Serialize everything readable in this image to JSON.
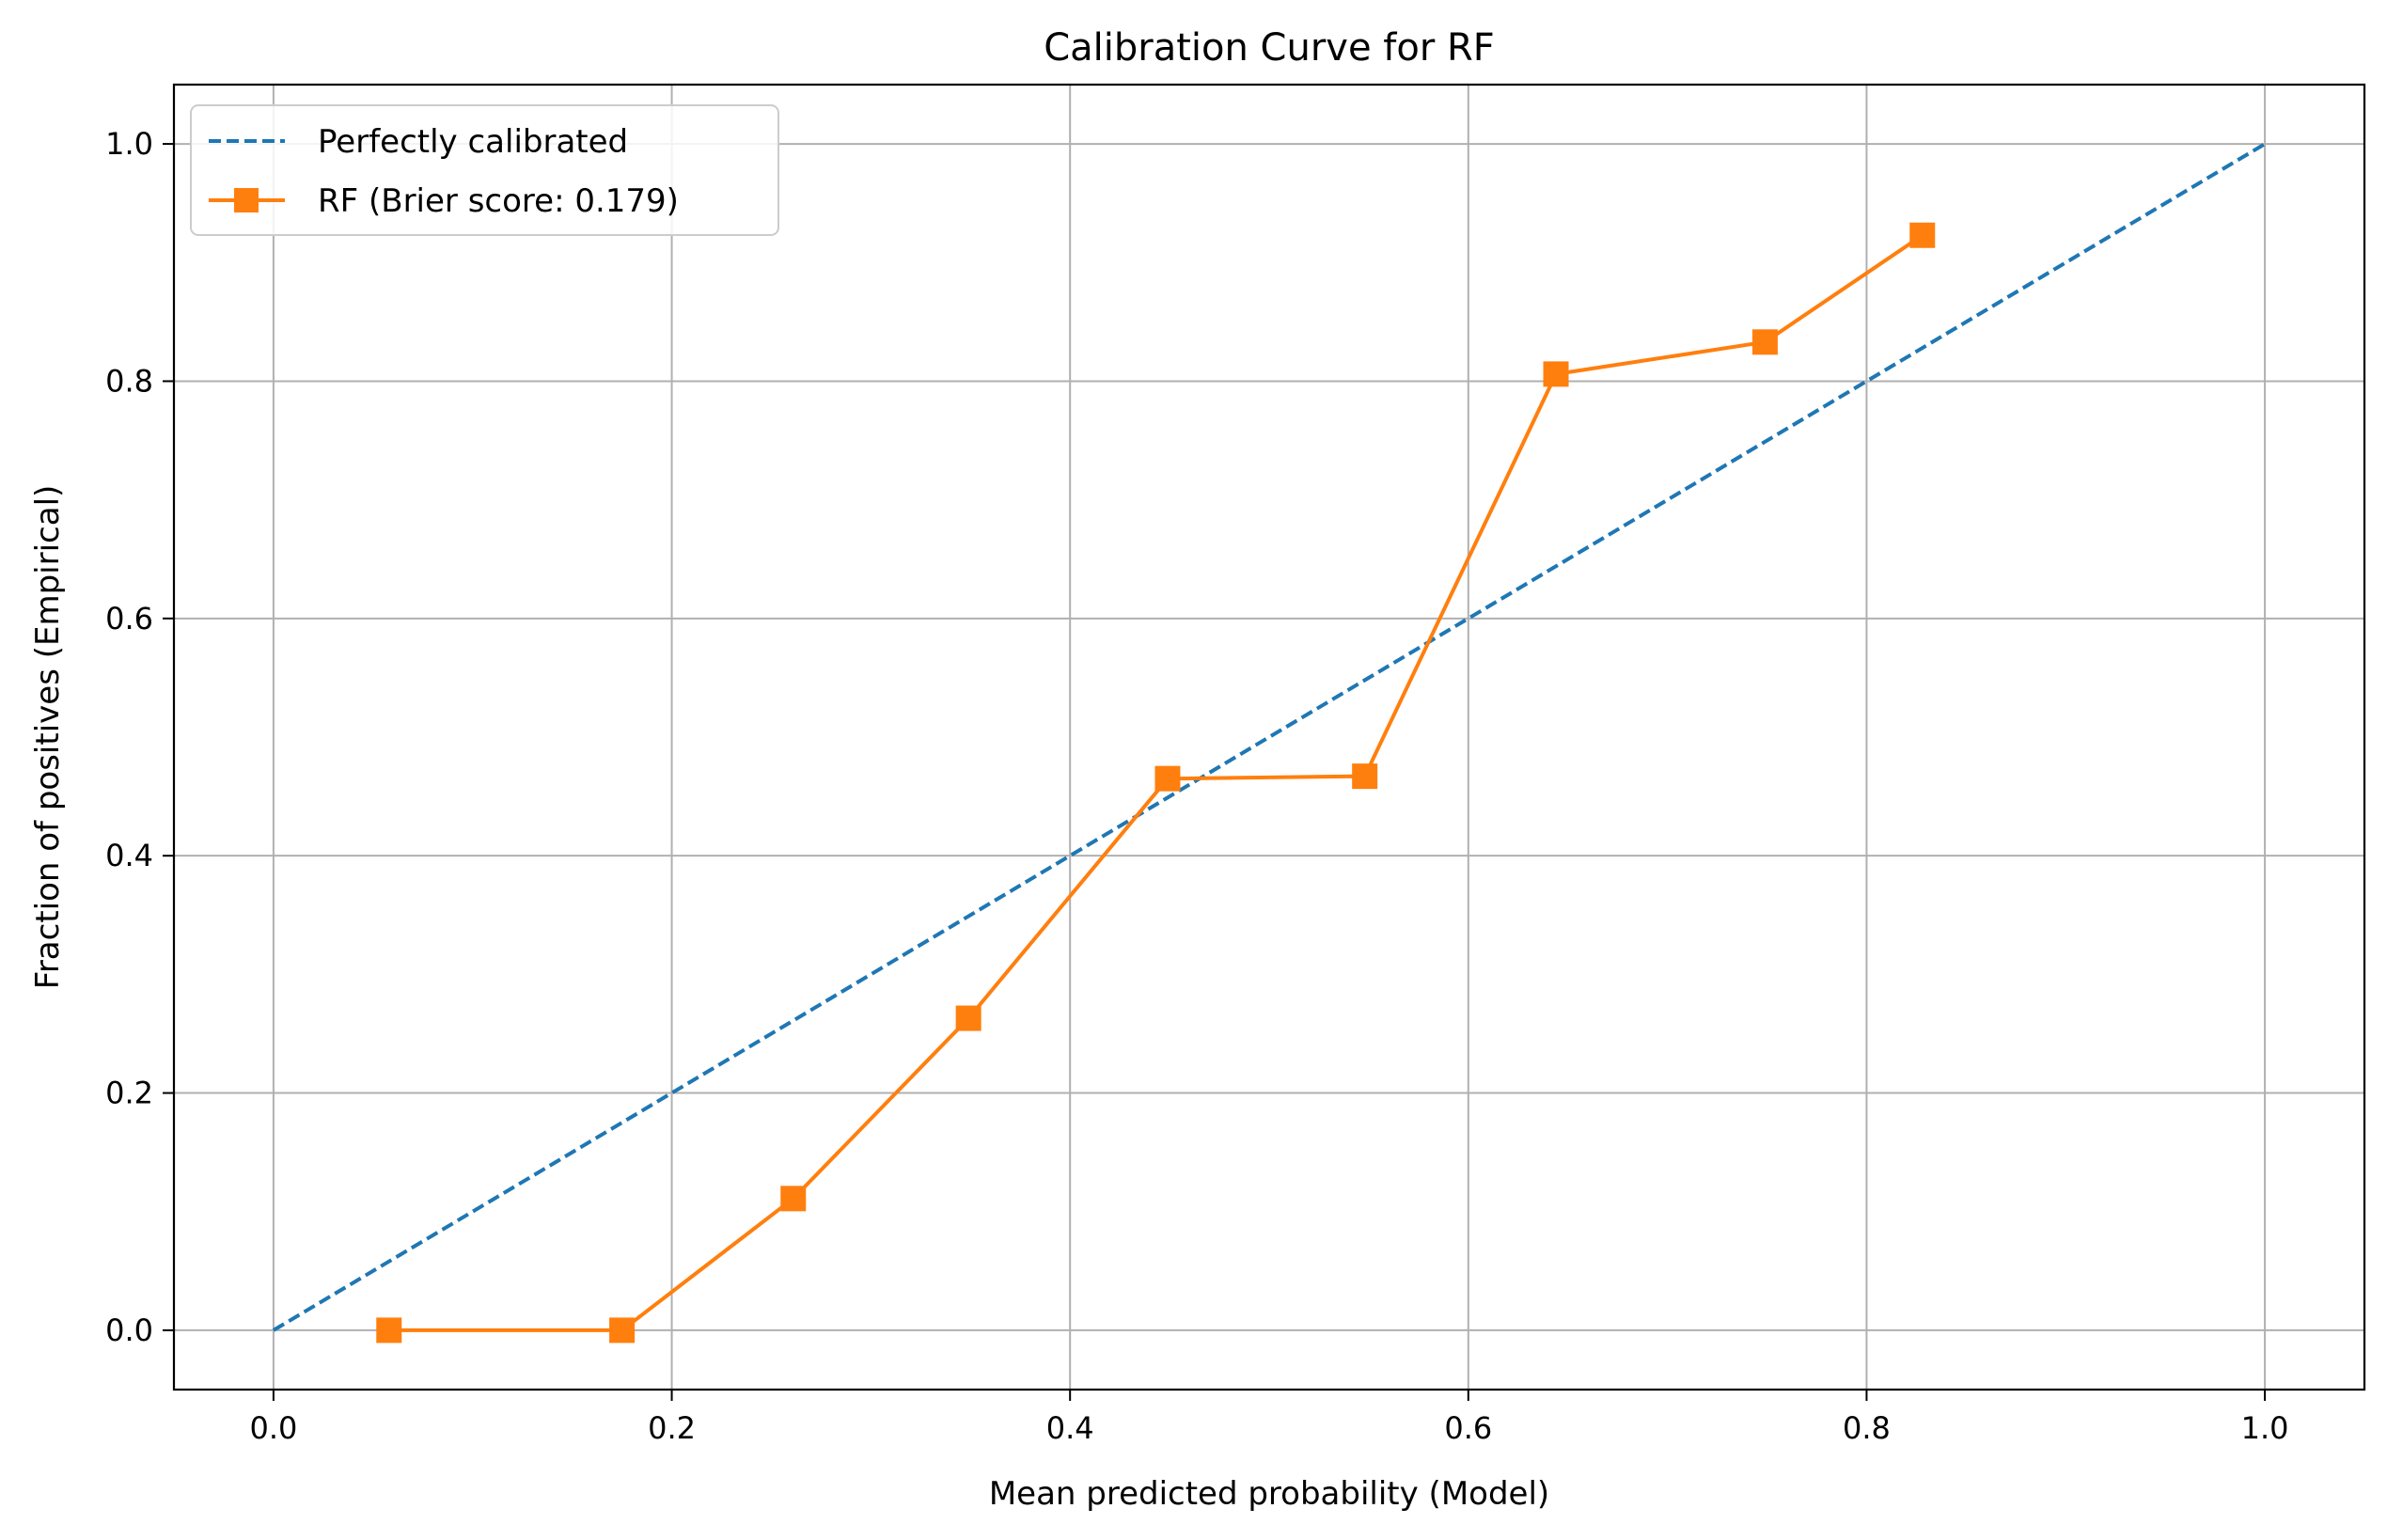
{
  "chart_data": {
    "type": "line",
    "title": "Calibration Curve for RF",
    "xlabel": "Mean predicted probability (Model)",
    "ylabel": "Fraction of positives (Empirical)",
    "xlim": [
      -0.05,
      1.05
    ],
    "ylim": [
      -0.05,
      1.05
    ],
    "xticks": [
      0.0,
      0.2,
      0.4,
      0.6,
      0.8,
      1.0
    ],
    "yticks": [
      0.0,
      0.2,
      0.4,
      0.6,
      0.8,
      1.0
    ],
    "x_tick_labels": [
      "0.0",
      "0.2",
      "0.4",
      "0.6",
      "0.8",
      "1.0"
    ],
    "y_tick_labels": [
      "0.0",
      "0.2",
      "0.4",
      "0.6",
      "0.8",
      "1.0"
    ],
    "grid": true,
    "legend_position": "top-left",
    "series": [
      {
        "name": "Perfectly calibrated",
        "style": "dashed",
        "color": "#1f77b4",
        "x": [
          0.0,
          1.0
        ],
        "y": [
          0.0,
          1.0
        ]
      },
      {
        "name": "RF (Brier score: 0.179)",
        "style": "solid",
        "marker": "square",
        "color": "#ff7f0e",
        "x": [
          0.058,
          0.175,
          0.261,
          0.349,
          0.449,
          0.548,
          0.644,
          0.749,
          0.828
        ],
        "y": [
          0.0,
          0.0,
          0.111,
          0.263,
          0.465,
          0.467,
          0.806,
          0.833,
          0.923
        ]
      }
    ]
  }
}
